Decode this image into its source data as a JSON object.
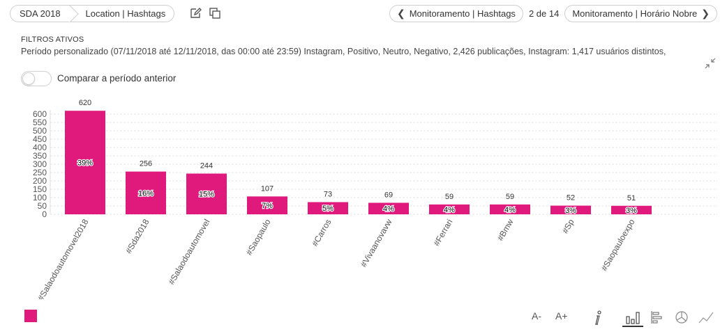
{
  "breadcrumb": {
    "first": "SDA 2018",
    "second": "Location | Hashtags"
  },
  "nav": {
    "prev_label": "Monitoramento | Hashtags",
    "counter": "2 de 14",
    "next_label": "Monitoramento | Horário Nobre"
  },
  "filters": {
    "title": "FILTROS ATIVOS",
    "text": "Período personalizado (07/11/2018 até 12/11/2018, das 00:00 até 23:59) Instagram, Positivo, Neutro, Negativo, 2,426 publicações, Instagram: 1,417 usuários distintos,"
  },
  "compare": {
    "label": "Comparar a período anterior",
    "enabled": false
  },
  "colors": {
    "bar": "#e0197d",
    "grid": "#e6e6e6",
    "text": "#333333"
  },
  "chart_data": {
    "type": "bar",
    "categories": [
      "#Salaodoautomovel2018",
      "#Sda2018",
      "#Salaodoautomovel",
      "#Saopaulo",
      "#Carros",
      "#Vivaanovavw",
      "#Ferrari",
      "#Bmw",
      "#Sp",
      "#Saopauloexpo"
    ],
    "values": [
      620,
      256,
      244,
      107,
      73,
      69,
      59,
      59,
      52,
      51
    ],
    "percent_labels": [
      "39%",
      "16%",
      "15%",
      "7%",
      "5%",
      "4%",
      "4%",
      "4%",
      "3%",
      "3%"
    ],
    "y_ticks": [
      "0",
      "50",
      "100",
      "150",
      "200",
      "250",
      "300",
      "350",
      "400",
      "450",
      "500",
      "550",
      "600"
    ],
    "ylim": [
      0,
      620
    ],
    "grid": true
  },
  "toolbar": {
    "font_decrease": "A-",
    "font_increase": "A+",
    "icons": [
      "info-icon",
      "bar-chart-icon",
      "horizontal-bar-icon",
      "pie-chart-icon",
      "line-chart-icon"
    ],
    "active": "bar-chart-icon"
  }
}
